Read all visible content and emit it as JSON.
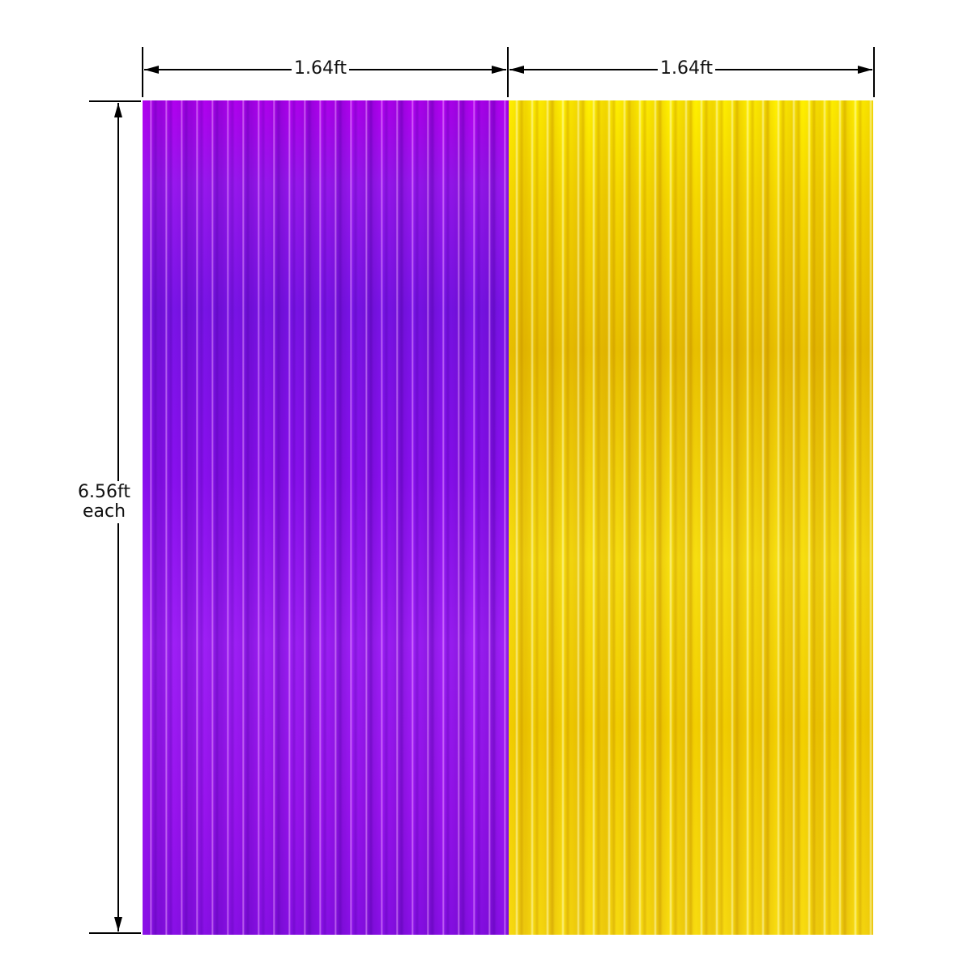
{
  "dimensions": {
    "width_left": "1.64ft",
    "width_right": "1.64ft",
    "height": "6.56ft",
    "height_note": "each"
  },
  "curtains": [
    {
      "color_name": "purple",
      "color": "#9a18f0"
    },
    {
      "color_name": "gold",
      "color": "#f2d200"
    }
  ]
}
